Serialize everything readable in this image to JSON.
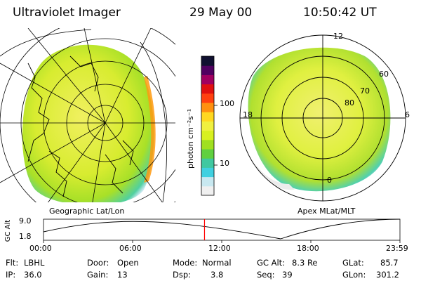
{
  "header": {
    "instrument": "Ultraviolet Imager",
    "date": "29 May 00",
    "time": "10:50:42 UT"
  },
  "left_panel": {
    "label": "Geographic Lat/Lon"
  },
  "right_panel": {
    "label": "Apex MLat/MLT",
    "mlt_labels": [
      "12",
      "18",
      "6",
      "0"
    ],
    "lat_labels": [
      "60",
      "70",
      "80"
    ]
  },
  "colorbar": {
    "unit": "photon cm⁻²s⁻¹",
    "ticks": [
      "100",
      "10"
    ],
    "colors": [
      "#f0f0f0",
      "#c8e8f0",
      "#40d0e0",
      "#40c8a0",
      "#60d040",
      "#a0e020",
      "#d8f020",
      "#f0f040",
      "#ffd820",
      "#ff9010",
      "#ff4010",
      "#e01010",
      "#a00060",
      "#500060",
      "#101030"
    ]
  },
  "altitude_plot": {
    "y_label": "GC Alt",
    "y_ticks": [
      "9.0",
      "1.8"
    ],
    "x_ticks": [
      "00:00",
      "06:00",
      "12:00",
      "18:00",
      "23:59"
    ],
    "marker_time": "10:50",
    "marker_color": "#ff0000"
  },
  "info": {
    "flt_label": "Flt:",
    "flt_value": "LBHL",
    "ip_label": "IP:",
    "ip_value": "36.0",
    "door_label": "Door:",
    "door_value": "Open",
    "gain_label": "Gain:",
    "gain_value": "13",
    "mode_label": "Mode:",
    "mode_value": "Normal",
    "dsp_label": "Dsp:",
    "dsp_value": "3.8",
    "gcalt_label": "GC Alt:",
    "gcalt_value": "8.3 Re",
    "seq_label": "Seq:",
    "seq_value": "39",
    "glat_label": "GLat:",
    "glat_value": "85.7",
    "glon_label": "GLon:",
    "glon_value": "301.2"
  }
}
